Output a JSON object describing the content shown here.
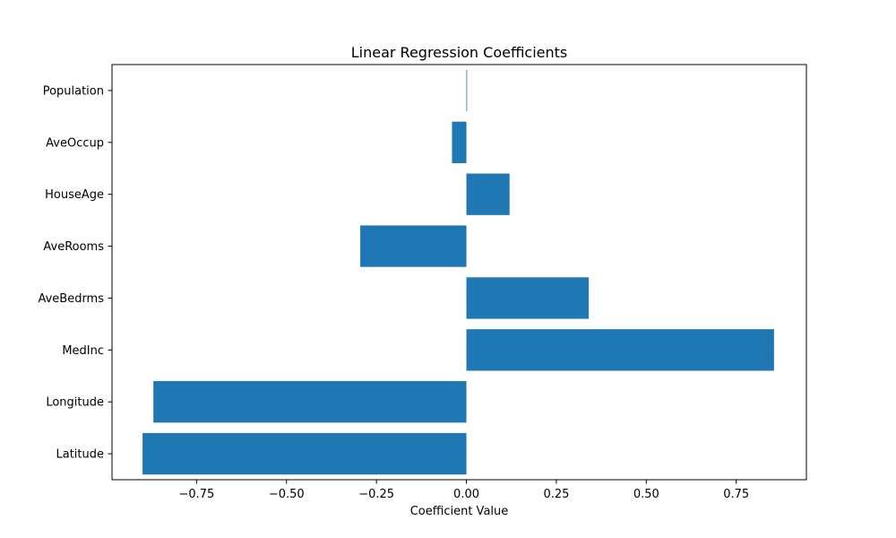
{
  "chart_data": {
    "type": "bar",
    "orientation": "horizontal",
    "title": "Linear Regression Coefficients",
    "xlabel": "Coefficient Value",
    "ylabel": "",
    "categories": [
      "Latitude",
      "Longitude",
      "MedInc",
      "AveBedrms",
      "AveRooms",
      "HouseAge",
      "AveOccup",
      "Population"
    ],
    "values": [
      -0.9,
      -0.87,
      0.855,
      0.34,
      -0.295,
      0.12,
      -0.04,
      -1e-05
    ],
    "xlim": [
      -0.985,
      0.945
    ],
    "xticks": [
      -0.75,
      -0.5,
      -0.25,
      0.0,
      0.25,
      0.5,
      0.75
    ],
    "xtick_labels": [
      "−0.75",
      "−0.50",
      "−0.25",
      "0.00",
      "0.25",
      "0.50",
      "0.75"
    ],
    "bar_color": "#1f77b4",
    "grid": false,
    "legend": "none"
  }
}
